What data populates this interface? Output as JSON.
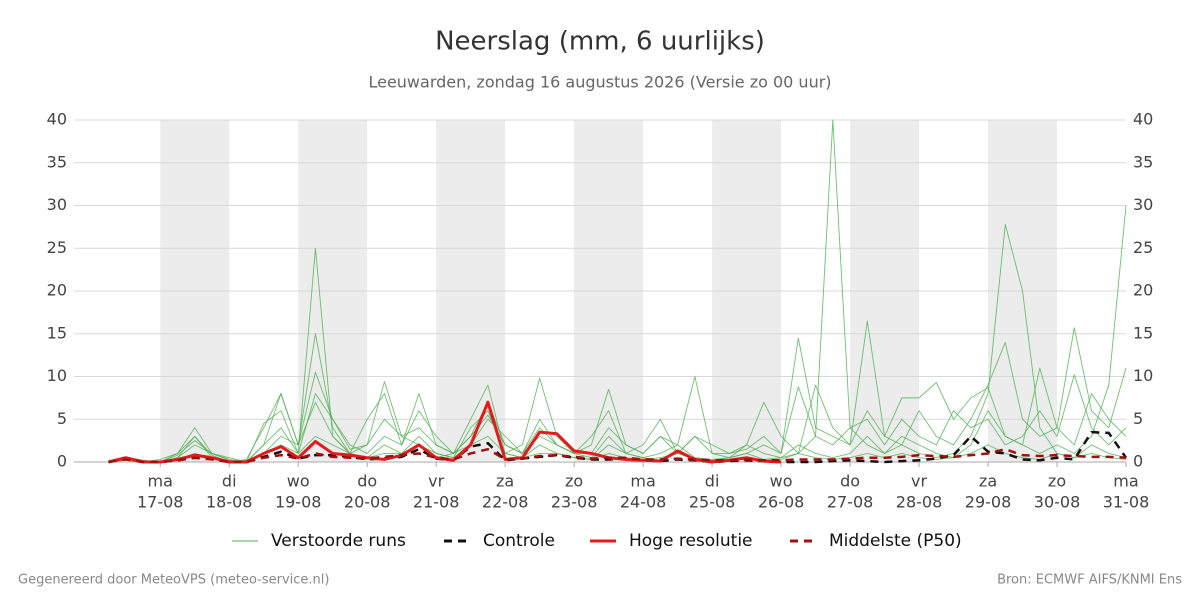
{
  "chart_data": {
    "type": "line",
    "title": "Neerslag (mm, 6 uurlijks)",
    "subtitle": "Leeuwarden, zondag 16 augustus 2026 (Versie zo 00 uur)",
    "footer_left": "Gegenereerd door MeteoVPS (meteo-service.nl)",
    "footer_right": "Bron: ECMWF AIFS/KNMI Ens",
    "xlim": [
      -6,
      360
    ],
    "xticks": [
      {
        "value": 24,
        "label": "ma"
      },
      {
        "value": 48,
        "label": "di"
      },
      {
        "value": 72,
        "label": "wo"
      },
      {
        "value": 96,
        "label": "do"
      },
      {
        "value": 120,
        "label": "vr"
      },
      {
        "value": 144,
        "label": "za"
      },
      {
        "value": 168,
        "label": "zo"
      },
      {
        "value": 192,
        "label": "ma"
      },
      {
        "value": 216,
        "label": "di"
      },
      {
        "value": 240,
        "label": "wo"
      },
      {
        "value": 264,
        "label": "do"
      },
      {
        "value": 288,
        "label": "vr"
      },
      {
        "value": 312,
        "label": "za"
      },
      {
        "value": 336,
        "label": "zo"
      },
      {
        "value": 360,
        "label": "ma"
      }
    ],
    "xtick_dates": [
      "17-08",
      "18-08",
      "19-08",
      "20-08",
      "21-08",
      "22-08",
      "23-08",
      "24-08",
      "25-08",
      "26-08",
      "27-08",
      "28-08",
      "29-08",
      "30-08",
      "31-08"
    ],
    "shaded_bands": true,
    "ylim": [
      0,
      40
    ],
    "yticks": [
      0,
      5,
      10,
      15,
      20,
      25,
      30,
      35,
      40
    ],
    "y2lim": [
      0,
      40
    ],
    "y2ticks": [
      0,
      5,
      10,
      15,
      20,
      25,
      30,
      35,
      40
    ],
    "grid": true,
    "x": [
      6,
      12,
      18,
      24,
      30,
      36,
      42,
      48,
      54,
      60,
      66,
      72,
      78,
      84,
      90,
      96,
      102,
      108,
      114,
      120,
      126,
      132,
      138,
      144,
      150,
      156,
      162,
      168,
      174,
      180,
      186,
      192,
      198,
      204,
      210,
      216,
      222,
      228,
      234,
      240,
      246,
      252,
      258,
      264,
      270,
      276,
      282,
      288,
      294,
      300,
      306,
      312,
      318,
      324,
      330,
      336,
      342,
      348,
      354,
      360
    ],
    "ensemble": {
      "name": "Verstoorde runs",
      "color": "#4caf50",
      "runs": [
        [
          0,
          0.3,
          0,
          0,
          0.5,
          2,
          1,
          0.2,
          0,
          2,
          4,
          1,
          25,
          3,
          1,
          0.5,
          2,
          1,
          3,
          1,
          0.5,
          4,
          6,
          1,
          0.5,
          2,
          1,
          0.5,
          0.3,
          2,
          1,
          0.5,
          0.2,
          1,
          0.5,
          0.2,
          0.5,
          1,
          0.3,
          0.5,
          2,
          1,
          0.5,
          1,
          3,
          1,
          2,
          1,
          0.5,
          1,
          3,
          8,
          27.8,
          20,
          4,
          1,
          0.5,
          2,
          1,
          0.5
        ],
        [
          0,
          0.5,
          0.2,
          0,
          1,
          3,
          0.5,
          0,
          0.2,
          1,
          3,
          2,
          15,
          4,
          1,
          2,
          9.4,
          3,
          2,
          0.5,
          1,
          3,
          7,
          2,
          1,
          5,
          2,
          1,
          0.5,
          3,
          1,
          0.5,
          1,
          2,
          0.5,
          0.3,
          0.5,
          2,
          1,
          0.5,
          1,
          3,
          40,
          4,
          2,
          1,
          3,
          2,
          1,
          0.5,
          2,
          6,
          3,
          2,
          1,
          2,
          1,
          3,
          9,
          30
        ],
        [
          0,
          0.2,
          0,
          0.3,
          1,
          4,
          1,
          0.5,
          0,
          2,
          8,
          2,
          10.5,
          5,
          2,
          1,
          3,
          2,
          8,
          2,
          1,
          5,
          9,
          1,
          2,
          9.8,
          3,
          1,
          2,
          8.5,
          2,
          1,
          3,
          2,
          10,
          1,
          0.5,
          1,
          2,
          1,
          14.5,
          4,
          3,
          2,
          16.5,
          3,
          2,
          6,
          3,
          2,
          5,
          9,
          14,
          5,
          3,
          4,
          15.7,
          6,
          4,
          11
        ],
        [
          0,
          0.4,
          0.1,
          0,
          0.5,
          3,
          0.8,
          0,
          0.3,
          4,
          8,
          2,
          7,
          3,
          1,
          5,
          8,
          2,
          6,
          3,
          1,
          2,
          5,
          3,
          1,
          4,
          2,
          1,
          3,
          6,
          1,
          2,
          5,
          1,
          3,
          2,
          1,
          2,
          7,
          3,
          1,
          9,
          4,
          2,
          6,
          3,
          7.5,
          7.5,
          9.3,
          5,
          7.5,
          8.7,
          3,
          2,
          11,
          4,
          2,
          8,
          5,
          3
        ],
        [
          0,
          0.2,
          0,
          0,
          0.3,
          1,
          0.5,
          0,
          0,
          1,
          2,
          1,
          3,
          2,
          1,
          0.5,
          1,
          1,
          2,
          1,
          0.5,
          2,
          3,
          1,
          0.5,
          1,
          1,
          0.5,
          0.3,
          1,
          0.5,
          0.3,
          0.5,
          1,
          0.3,
          0.2,
          0.3,
          0.5,
          0.2,
          0.3,
          1,
          0.5,
          0.3,
          0.5,
          1,
          0.5,
          1,
          0.5,
          0.3,
          0.5,
          1,
          2,
          1,
          0.5,
          0.3,
          1,
          0.5,
          1,
          0.5,
          0.3
        ],
        [
          0,
          0.6,
          0.2,
          0,
          0.8,
          2.5,
          1,
          0.3,
          0,
          4.5,
          6,
          1,
          8,
          5,
          1.5,
          2,
          5,
          3,
          4,
          2,
          1,
          3,
          5.5,
          2,
          1,
          3,
          2,
          1,
          1,
          4,
          2,
          1,
          3,
          1,
          3,
          1,
          1,
          1.5,
          3,
          1,
          8.8,
          3,
          2,
          4,
          5,
          2,
          5,
          3,
          2,
          6,
          4,
          5,
          2,
          3,
          6,
          3,
          10.2,
          4,
          2,
          4
        ]
      ]
    },
    "series": [
      {
        "name": "Controle",
        "color": "#111111",
        "dash": true,
        "values": [
          0,
          0.4,
          0,
          0,
          0.2,
          0.5,
          0.4,
          0,
          0,
          0.6,
          1.2,
          0.4,
          0.8,
          0.8,
          0.6,
          0.3,
          0.4,
          0.6,
          1.5,
          0.4,
          0.2,
          1.8,
          2.2,
          0.2,
          0.4,
          0.6,
          0.8,
          0.5,
          0.3,
          0.3,
          0.4,
          0.2,
          0.1,
          0.3,
          0.2,
          0,
          0.1,
          0.2,
          0.1,
          0,
          0,
          0,
          0.1,
          0.2,
          0.1,
          0,
          0.1,
          0.2,
          0.4,
          0.8,
          3,
          1.2,
          1,
          0.3,
          0.2,
          0.5,
          0.3,
          3.5,
          3.4,
          0.5
        ]
      },
      {
        "name": "Hoge resolutie",
        "color": "#e41a1c",
        "dash": false,
        "values": [
          0,
          0.5,
          0,
          0,
          0.3,
          0.8,
          0.5,
          0,
          0,
          1,
          1.8,
          0.5,
          2.4,
          1,
          0.8,
          0.5,
          0.3,
          0.8,
          2,
          0.5,
          0.2,
          2,
          7,
          0.3,
          0.5,
          3.5,
          3.3,
          1.3,
          1,
          0.5,
          0.3,
          0.2,
          0.1,
          1.3,
          0.3,
          0,
          0.2,
          0.5,
          0.1,
          0,
          null,
          null,
          null,
          null,
          null,
          null,
          null,
          null,
          null,
          null,
          null,
          null,
          null,
          null,
          null,
          null,
          null,
          null,
          null,
          null
        ]
      },
      {
        "name": "Middelste (P50)",
        "color": "#a01010",
        "dash": true,
        "values": [
          0,
          0.3,
          0,
          0,
          0.2,
          0.5,
          0.3,
          0,
          0,
          0.5,
          0.8,
          0.4,
          1,
          0.6,
          0.5,
          0.4,
          0.6,
          0.8,
          1,
          0.5,
          0.3,
          1,
          1.5,
          0.3,
          0.4,
          0.7,
          0.8,
          0.6,
          0.4,
          0.5,
          0.5,
          0.3,
          0.3,
          0.4,
          0.3,
          0.2,
          0.2,
          0.3,
          0.2,
          0.2,
          0.3,
          0.3,
          0.3,
          0.4,
          0.5,
          0.5,
          0.6,
          0.8,
          0.7,
          0.6,
          0.8,
          1,
          1.5,
          0.8,
          0.7,
          0.8,
          0.7,
          0.6,
          0.6,
          0.5
        ]
      }
    ]
  }
}
